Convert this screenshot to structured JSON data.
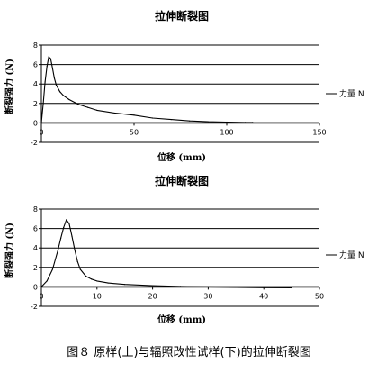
{
  "caption": "图８ 原样(上)与辐照改性试样(下)的拉伸断裂图",
  "chart_data": [
    {
      "type": "line",
      "title": "拉伸断裂图",
      "xlabel": "位移 (mm)",
      "ylabel": "断裂强力 (N)",
      "xlim": [
        0,
        150
      ],
      "ylim": [
        -2,
        8
      ],
      "x_ticks": [
        "0",
        "50",
        "100",
        "150"
      ],
      "y_ticks": [
        "-2",
        "0",
        "2",
        "4",
        "6",
        "8"
      ],
      "grid": "horizontal",
      "legend": "right",
      "series": [
        {
          "name": "力量 N",
          "color": "#000000",
          "x": [
            0,
            1,
            2,
            3,
            4,
            5,
            6,
            7,
            8,
            10,
            12,
            15,
            20,
            25,
            30,
            40,
            50,
            60,
            70,
            80,
            90,
            100,
            110,
            114
          ],
          "y": [
            0,
            2.0,
            4.2,
            5.8,
            6.8,
            6.6,
            5.6,
            4.6,
            3.9,
            3.2,
            2.8,
            2.4,
            1.9,
            1.6,
            1.3,
            1.0,
            0.8,
            0.5,
            0.35,
            0.2,
            0.12,
            0.08,
            0.05,
            0.05
          ]
        }
      ]
    },
    {
      "type": "line",
      "title": "拉伸断裂图",
      "xlabel": "位移 (mm)",
      "ylabel": "断裂强力 (N)",
      "xlim": [
        0,
        50
      ],
      "ylim": [
        -2,
        8
      ],
      "x_ticks": [
        "0",
        "10",
        "20",
        "30",
        "40",
        "50"
      ],
      "y_ticks": [
        "-2",
        "0",
        "2",
        "4",
        "6",
        "8"
      ],
      "grid": "horizontal",
      "legend": "right",
      "series": [
        {
          "name": "力量 N",
          "color": "#000000",
          "x": [
            0,
            1,
            2,
            3,
            3.5,
            4,
            4.5,
            5,
            5.5,
            6,
            6.5,
            7,
            8,
            9,
            10,
            12,
            15,
            20,
            25,
            30,
            35,
            40,
            45
          ],
          "y": [
            0,
            0.6,
            1.8,
            3.8,
            5.0,
            6.1,
            6.9,
            6.5,
            5.2,
            3.8,
            2.6,
            1.8,
            1.1,
            0.8,
            0.6,
            0.4,
            0.25,
            0.12,
            0.05,
            0.0,
            -0.05,
            -0.08,
            -0.1
          ]
        }
      ]
    }
  ]
}
